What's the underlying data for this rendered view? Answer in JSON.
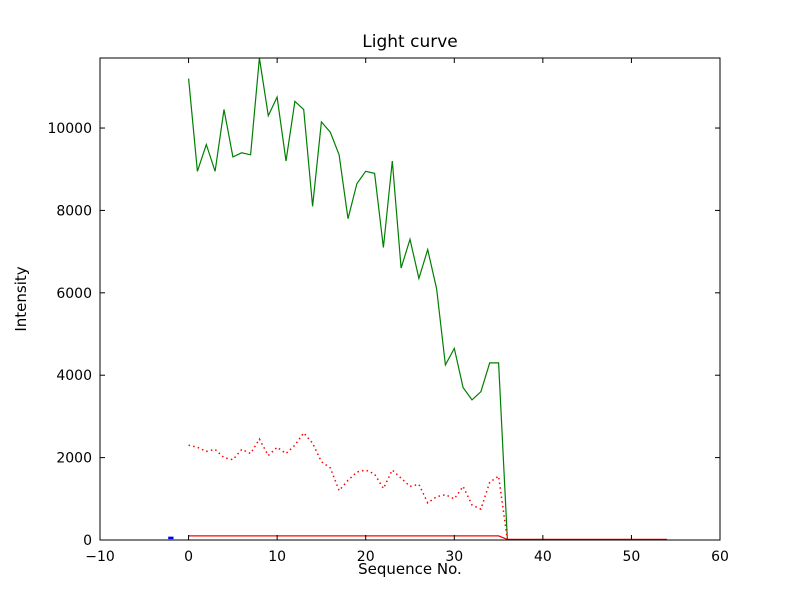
{
  "figure": {
    "background": "#ffffff",
    "axes_background": "#ffffff",
    "frame_color": "#000000"
  },
  "chart_data": {
    "type": "line",
    "title": "Light curve",
    "xlabel": "Sequence No.",
    "ylabel": "Intensity",
    "xlim": [
      -10,
      60
    ],
    "ylim": [
      0,
      11700
    ],
    "grid": false,
    "legend": null,
    "x_ticks": [
      -10,
      0,
      10,
      20,
      30,
      40,
      50,
      60
    ],
    "x_tick_labels": [
      "−10",
      "0",
      "10",
      "20",
      "30",
      "40",
      "50",
      "60"
    ],
    "y_ticks": [
      0,
      2000,
      4000,
      6000,
      8000,
      10000
    ],
    "y_tick_labels": [
      "0",
      "2000",
      "4000",
      "6000",
      "8000",
      "10000"
    ],
    "series": [
      {
        "name": "green-intensity",
        "color": "#007f00",
        "style": "solid",
        "width": 1.2,
        "x": [
          0,
          1,
          2,
          3,
          4,
          5,
          6,
          7,
          8,
          9,
          10,
          11,
          12,
          13,
          14,
          15,
          16,
          17,
          18,
          19,
          20,
          21,
          22,
          23,
          24,
          25,
          26,
          27,
          28,
          29,
          30,
          31,
          32,
          33,
          34,
          35,
          36
        ],
        "y": [
          11200,
          8950,
          9600,
          8950,
          10450,
          9300,
          9400,
          9350,
          11700,
          10300,
          10750,
          9200,
          10650,
          10450,
          8100,
          10150,
          9900,
          9350,
          7800,
          8650,
          8950,
          8900,
          7100,
          9200,
          6600,
          7300,
          6350,
          7050,
          6100,
          4250,
          4650,
          3700,
          3400,
          3600,
          4300,
          4300,
          0
        ]
      },
      {
        "name": "red-dotted-intensity",
        "color": "#ff0000",
        "style": "dotted",
        "width": 1.5,
        "x": [
          0,
          1,
          2,
          3,
          4,
          5,
          6,
          7,
          8,
          9,
          10,
          11,
          12,
          13,
          14,
          15,
          16,
          17,
          18,
          19,
          20,
          21,
          22,
          23,
          24,
          25,
          26,
          27,
          28,
          29,
          30,
          31,
          32,
          33,
          34,
          35,
          36
        ],
        "y": [
          2300,
          2250,
          2150,
          2200,
          2000,
          1950,
          2200,
          2100,
          2450,
          2050,
          2250,
          2100,
          2300,
          2600,
          2350,
          1900,
          1750,
          1200,
          1450,
          1650,
          1700,
          1600,
          1250,
          1700,
          1500,
          1300,
          1350,
          900,
          1050,
          1100,
          1000,
          1300,
          850,
          750,
          1400,
          1550,
          0
        ]
      },
      {
        "name": "red-solid-baseline",
        "color": "#ff0000",
        "style": "solid",
        "width": 1.2,
        "x": [
          0,
          35,
          36,
          54
        ],
        "y": [
          100,
          100,
          15,
          15
        ]
      },
      {
        "name": "blue-marker-segment",
        "color": "#0000ff",
        "style": "solid",
        "width": 2.5,
        "x": [
          -2.3,
          -1.7
        ],
        "y": [
          50,
          50
        ]
      }
    ]
  }
}
